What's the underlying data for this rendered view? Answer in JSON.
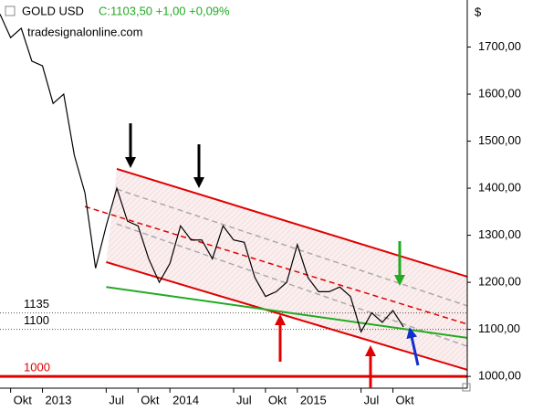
{
  "chart_data": {
    "type": "line",
    "title": "GOLD USD",
    "quote": "C:1103,50 +1,00 +0,09%",
    "watermark": "tradesignalonline.com",
    "currency": "$",
    "x": [
      "2012-09",
      "2012-10",
      "2012-11",
      "2012-12",
      "2013-01",
      "2013-02",
      "2013-03",
      "2013-04",
      "2013-05",
      "2013-06",
      "2013-07",
      "2013-08",
      "2013-09",
      "2013-10",
      "2013-11",
      "2013-12",
      "2014-01",
      "2014-02",
      "2014-03",
      "2014-04",
      "2014-05",
      "2014-06",
      "2014-07",
      "2014-08",
      "2014-09",
      "2014-10",
      "2014-11",
      "2014-12",
      "2015-01",
      "2015-02",
      "2015-03",
      "2015-04",
      "2015-05",
      "2015-06",
      "2015-07",
      "2015-08",
      "2015-09",
      "2015-10",
      "2015-11"
    ],
    "series": [
      {
        "name": "GOLD USD",
        "color": "#000000",
        "values": [
          1770,
          1720,
          1740,
          1670,
          1660,
          1580,
          1600,
          1470,
          1390,
          1230,
          1320,
          1400,
          1330,
          1320,
          1250,
          1200,
          1240,
          1320,
          1290,
          1290,
          1250,
          1320,
          1290,
          1285,
          1210,
          1170,
          1180,
          1200,
          1280,
          1210,
          1180,
          1180,
          1190,
          1170,
          1095,
          1135,
          1115,
          1140,
          1105
        ]
      }
    ],
    "xlim": [
      "2012-09",
      "2016-05"
    ],
    "xticks": [
      {
        "value": "2012-10",
        "label": "Okt"
      },
      {
        "value": "2013-01",
        "label": "2013"
      },
      {
        "value": "2013-07",
        "label": "Jul"
      },
      {
        "value": "2013-10",
        "label": "Okt"
      },
      {
        "value": "2014-01",
        "label": "2014"
      },
      {
        "value": "2014-07",
        "label": "Jul"
      },
      {
        "value": "2014-10",
        "label": "Okt"
      },
      {
        "value": "2015-01",
        "label": "2015"
      },
      {
        "value": "2015-07",
        "label": "Jul"
      },
      {
        "value": "2015-10",
        "label": "Okt"
      }
    ],
    "ylim": [
      975,
      1800
    ],
    "yticks": [
      {
        "value": 1000,
        "label": "1000,00"
      },
      {
        "value": 1100,
        "label": "1100,00"
      },
      {
        "value": 1200,
        "label": "1200,00"
      },
      {
        "value": 1300,
        "label": "1300,00"
      },
      {
        "value": 1400,
        "label": "1400,00"
      },
      {
        "value": 1500,
        "label": "1500,00"
      },
      {
        "value": 1600,
        "label": "1600,00"
      },
      {
        "value": 1700,
        "label": "1700,00"
      }
    ],
    "levels": [
      {
        "value": 1135,
        "color": "#555555",
        "style": "dotted"
      },
      {
        "value": 1100,
        "color": "#555555",
        "style": "dotted"
      },
      {
        "value": 1000,
        "color": "#e00000",
        "style": "solid"
      }
    ],
    "trendlines": [
      {
        "x": [
          "2013-08",
          "2016-05"
        ],
        "values": [
          1441,
          1212
        ],
        "color": "#e00000",
        "dash": false
      },
      {
        "x": [
          "2013-07",
          "2016-05"
        ],
        "values": [
          1243,
          1014
        ],
        "color": "#e00000",
        "dash": false
      },
      {
        "x": [
          "2013-05",
          "2016-05"
        ],
        "values": [
          1361,
          1111
        ],
        "color": "#e00000",
        "dash": true
      },
      {
        "x": [
          "2013-08",
          "2016-05"
        ],
        "values": [
          1398,
          1150
        ],
        "color": "#aaaaaa",
        "dash": true
      },
      {
        "x": [
          "2013-08",
          "2016-05"
        ],
        "values": [
          1324,
          1064
        ],
        "color": "#aaaaaa",
        "dash": true
      },
      {
        "x": [
          "2013-07",
          "2016-05"
        ],
        "values": [
          1190,
          1082
        ],
        "color": "#22aa22",
        "dash": false
      }
    ]
  }
}
